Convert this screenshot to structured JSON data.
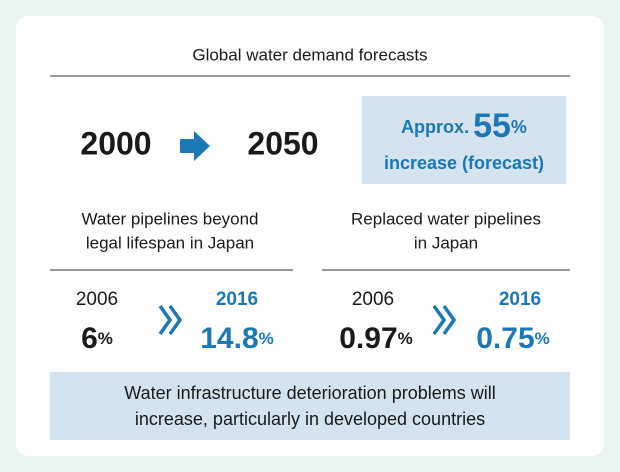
{
  "title": "Global water demand forecasts",
  "forecast": {
    "from": 2000,
    "to": 2050,
    "approx": "Approx.",
    "value": 55,
    "unit": "%",
    "caption": "increase (forecast)"
  },
  "sections": [
    {
      "heading": [
        "Water pipelines beyond",
        "legal lifespan in Japan"
      ],
      "before": {
        "year": 2006,
        "value": 6,
        "unit": "%"
      },
      "after": {
        "year": 2016,
        "value": 14.8,
        "unit": "%"
      }
    },
    {
      "heading": [
        "Replaced water pipelines",
        "in Japan"
      ],
      "before": {
        "year": 2006,
        "value": 0.97,
        "unit": "%"
      },
      "after": {
        "year": 2016,
        "value": 0.75,
        "unit": "%"
      }
    }
  ],
  "conclusion": [
    "Water infrastructure deterioration problems will",
    "increase, particularly in developed countries"
  ]
}
